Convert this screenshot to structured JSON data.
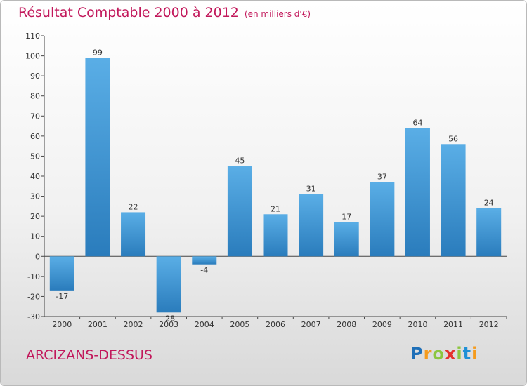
{
  "title": "Résultat Comptable 2000 à 2012",
  "unit_note": "(en milliers d'€)",
  "city": "ARCIZANS-DESSUS",
  "logo": {
    "letters": [
      "P",
      "r",
      "o",
      "x",
      "i",
      "t",
      "i"
    ],
    "colors": [
      "#1e6fb8",
      "#f59b1d",
      "#8cc63f",
      "#e5322d",
      "#8cc63f",
      "#1e90d6",
      "#f59b1d"
    ]
  },
  "chart_data": {
    "type": "bar",
    "title": "Résultat Comptable 2000 à 2012",
    "categories": [
      "2000",
      "2001",
      "2002",
      "2003",
      "2004",
      "2005",
      "2006",
      "2007",
      "2008",
      "2009",
      "2010",
      "2011",
      "2012"
    ],
    "values": [
      -17,
      99,
      22,
      -28,
      -4,
      45,
      21,
      31,
      17,
      37,
      64,
      56,
      24
    ],
    "ylim": [
      -30,
      110
    ],
    "yticks": [
      -30,
      -20,
      -10,
      0,
      10,
      20,
      30,
      40,
      50,
      60,
      70,
      80,
      90,
      100,
      110
    ],
    "grid": false,
    "bar_color_top": "#5aaee6",
    "bar_color_bottom": "#2a7cbc",
    "label_color": "#c2185b"
  }
}
